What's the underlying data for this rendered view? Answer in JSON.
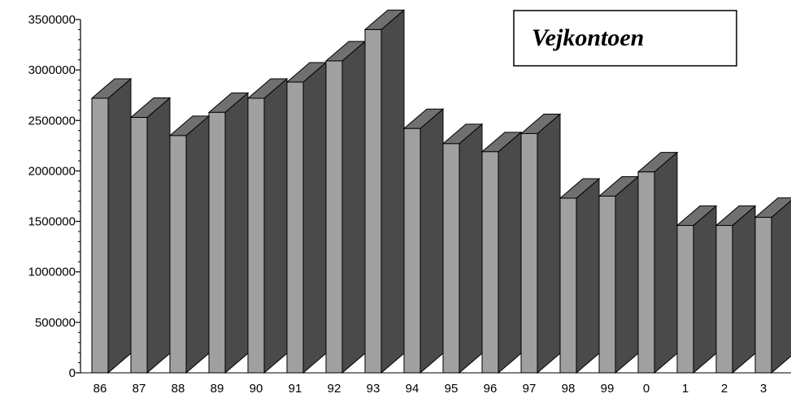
{
  "chart_data": {
    "type": "bar",
    "categories": [
      "86",
      "87",
      "88",
      "89",
      "90",
      "91",
      "92",
      "93",
      "94",
      "95",
      "96",
      "97",
      "98",
      "99",
      "0",
      "1",
      "2",
      "3"
    ],
    "series": [
      {
        "name": "Vejkontoen",
        "values": [
          2720000,
          2530000,
          2350000,
          2580000,
          2720000,
          2880000,
          3090000,
          3400000,
          2420000,
          2270000,
          2190000,
          2370000,
          1730000,
          1750000,
          1990000,
          1460000,
          1460000,
          1540000
        ]
      }
    ],
    "yticks": [
      "0",
      "500000",
      "1000000",
      "1500000",
      "2000000",
      "2500000",
      "3000000",
      "3500000"
    ],
    "ylim": [
      0,
      3500000
    ],
    "legend_position": "top-right",
    "grid": false,
    "colors": {
      "front": "#a0a0a0",
      "side": "#4a4a4a",
      "top": "#707070",
      "outline": "#000000"
    }
  }
}
